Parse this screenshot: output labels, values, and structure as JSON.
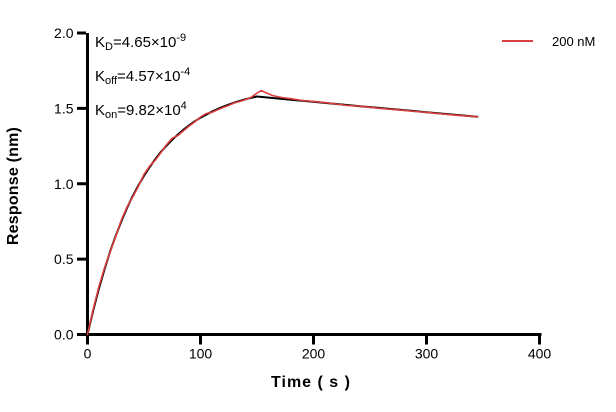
{
  "legend": {
    "label": "200 nM"
  },
  "chart_data": {
    "type": "line",
    "title": "",
    "xlabel": "Time ( s )",
    "ylabel": "Response (nm)",
    "xlim": [
      0,
      400
    ],
    "ylim": [
      0,
      2
    ],
    "xticks": [
      "0",
      "100",
      "200",
      "300",
      "400"
    ],
    "yticks": [
      "0.0",
      "0.5",
      "1.0",
      "1.5",
      "2.0"
    ],
    "grid": false,
    "legend_position": "top-right",
    "axis_color": "#000000",
    "annotations": [
      {
        "k": "K",
        "sub": "D",
        "mid": "=4.65×10",
        "sup": "-9"
      },
      {
        "k": "K",
        "sub": "off",
        "mid": "=4.57×10",
        "sup": "-4"
      },
      {
        "k": "K",
        "sub": "on",
        "mid": "=9.82×10",
        "sup": "4"
      }
    ],
    "series": [
      {
        "name": "fit",
        "color": "#000000",
        "width": 2,
        "points": [
          [
            0,
            0
          ],
          [
            5,
            0.159
          ],
          [
            10,
            0.302
          ],
          [
            15,
            0.432
          ],
          [
            20,
            0.55
          ],
          [
            25,
            0.656
          ],
          [
            30,
            0.752
          ],
          [
            35,
            0.839
          ],
          [
            40,
            0.918
          ],
          [
            45,
            0.988
          ],
          [
            50,
            1.053
          ],
          [
            55,
            1.111
          ],
          [
            60,
            1.163
          ],
          [
            65,
            1.211
          ],
          [
            70,
            1.253
          ],
          [
            75,
            1.292
          ],
          [
            80,
            1.327
          ],
          [
            85,
            1.359
          ],
          [
            90,
            1.388
          ],
          [
            95,
            1.414
          ],
          [
            100,
            1.438
          ],
          [
            105,
            1.459
          ],
          [
            110,
            1.478
          ],
          [
            115,
            1.495
          ],
          [
            120,
            1.511
          ],
          [
            125,
            1.525
          ],
          [
            130,
            1.538
          ],
          [
            135,
            1.55
          ],
          [
            140,
            1.561
          ],
          [
            145,
            1.57
          ],
          [
            150,
            1.579
          ],
          [
            165,
            1.568
          ],
          [
            180,
            1.557
          ],
          [
            195,
            1.547
          ],
          [
            210,
            1.536
          ],
          [
            225,
            1.526
          ],
          [
            240,
            1.515
          ],
          [
            255,
            1.505
          ],
          [
            270,
            1.495
          ],
          [
            285,
            1.485
          ],
          [
            300,
            1.474
          ],
          [
            315,
            1.464
          ],
          [
            330,
            1.454
          ],
          [
            345,
            1.444
          ]
        ]
      },
      {
        "name": "200 nM",
        "color": "#DB3E3E",
        "width": 1.6,
        "points": [
          [
            0,
            0
          ],
          [
            5,
            0.168
          ],
          [
            10,
            0.315
          ],
          [
            15,
            0.442
          ],
          [
            20,
            0.546
          ],
          [
            25,
            0.652
          ],
          [
            30,
            0.76
          ],
          [
            35,
            0.846
          ],
          [
            40,
            0.912
          ],
          [
            45,
            0.982
          ],
          [
            50,
            1.062
          ],
          [
            55,
            1.118
          ],
          [
            60,
            1.156
          ],
          [
            65,
            1.206
          ],
          [
            70,
            1.26
          ],
          [
            75,
            1.302
          ],
          [
            80,
            1.32
          ],
          [
            85,
            1.352
          ],
          [
            90,
            1.383
          ],
          [
            95,
            1.41
          ],
          [
            100,
            1.443
          ],
          [
            105,
            1.466
          ],
          [
            110,
            1.473
          ],
          [
            115,
            1.49
          ],
          [
            120,
            1.506
          ],
          [
            125,
            1.52
          ],
          [
            130,
            1.536
          ],
          [
            135,
            1.546
          ],
          [
            140,
            1.558
          ],
          [
            145,
            1.574
          ],
          [
            150,
            1.601
          ],
          [
            154,
            1.618
          ],
          [
            158,
            1.603
          ],
          [
            164,
            1.585
          ],
          [
            172,
            1.572
          ],
          [
            180,
            1.564
          ],
          [
            190,
            1.552
          ],
          [
            200,
            1.546
          ],
          [
            210,
            1.538
          ],
          [
            220,
            1.529
          ],
          [
            230,
            1.519
          ],
          [
            240,
            1.515
          ],
          [
            250,
            1.507
          ],
          [
            260,
            1.499
          ],
          [
            270,
            1.493
          ],
          [
            280,
            1.487
          ],
          [
            290,
            1.479
          ],
          [
            300,
            1.474
          ],
          [
            310,
            1.466
          ],
          [
            320,
            1.459
          ],
          [
            330,
            1.452
          ],
          [
            338,
            1.448
          ],
          [
            345,
            1.445
          ]
        ]
      }
    ]
  }
}
